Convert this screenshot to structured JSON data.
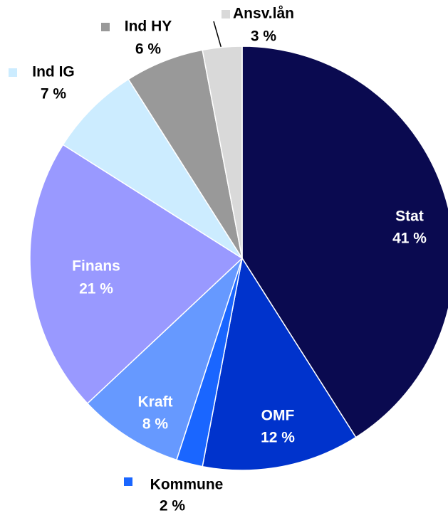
{
  "chart_data": {
    "type": "pie",
    "categories": [
      "Stat",
      "OMF",
      "Kommune",
      "Kraft",
      "Finans",
      "Ind IG",
      "Ind HY",
      "Ansv.lån"
    ],
    "values": [
      41,
      12,
      2,
      8,
      21,
      7,
      6,
      3
    ],
    "value_labels": [
      "41 %",
      "12 %",
      "2 %",
      "8 %",
      "21 %",
      "7 %",
      "6 %",
      "3 %"
    ],
    "colors": [
      "#0a0a50",
      "#0033cc",
      "#1a66ff",
      "#6699ff",
      "#9999ff",
      "#ccecff",
      "#999999",
      "#d9d9d9"
    ]
  }
}
